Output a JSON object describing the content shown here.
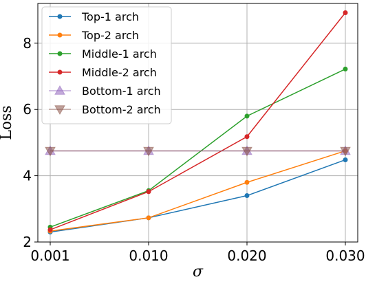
{
  "chart_data": {
    "type": "line",
    "x": [
      "0.001",
      "0.010",
      "0.020",
      "0.030"
    ],
    "xlabel": "σ",
    "ylabel": "Loss",
    "ylim": [
      2,
      9.2
    ],
    "yticks": [
      "2",
      "4",
      "6",
      "8"
    ],
    "grid": true,
    "legend_position": "top-left",
    "series": [
      {
        "name": "Top-1 arch",
        "values": [
          2.3,
          2.73,
          3.4,
          4.48
        ],
        "color": "#1f77b4",
        "marker": "circle"
      },
      {
        "name": "Top-2 arch",
        "values": [
          2.33,
          2.73,
          3.8,
          4.75
        ],
        "color": "#ff7f0e",
        "marker": "circle"
      },
      {
        "name": "Middle-1 arch",
        "values": [
          2.45,
          3.55,
          5.8,
          7.22
        ],
        "color": "#2ca02c",
        "marker": "circle"
      },
      {
        "name": "Middle-2 arch",
        "values": [
          2.37,
          3.52,
          5.18,
          8.92
        ],
        "color": "#d62728",
        "marker": "circle"
      },
      {
        "name": "Bottom-1 arch",
        "values": [
          4.75,
          4.75,
          4.75,
          4.75
        ],
        "color": "#9467bd",
        "marker": "triangle-up"
      },
      {
        "name": "Bottom-2 arch",
        "values": [
          4.75,
          4.75,
          4.75,
          4.75
        ],
        "color": "#8c564b",
        "marker": "triangle-down"
      }
    ]
  }
}
